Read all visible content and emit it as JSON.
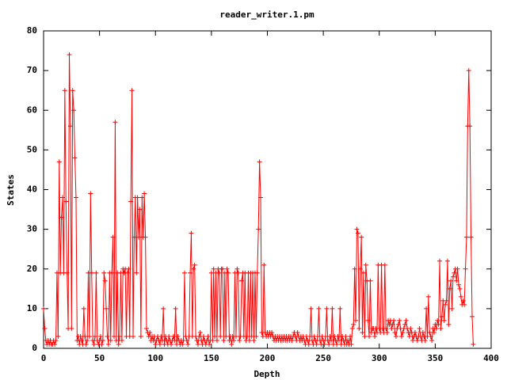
{
  "chart_data": {
    "type": "line",
    "title": "reader_writer.1.pm",
    "xlabel": "Depth",
    "ylabel": "States",
    "xlim": [
      0,
      400
    ],
    "xticks": [
      0,
      50,
      100,
      150,
      200,
      250,
      300,
      350,
      400
    ],
    "ylim": [
      0,
      80
    ],
    "yticks": [
      0,
      10,
      20,
      30,
      40,
      50,
      60,
      70,
      80
    ],
    "series": [
      {
        "name": "reader_writer.1.pm",
        "color": "#ff0000",
        "x": [
          0,
          1,
          2,
          3,
          4,
          5,
          6,
          7,
          8,
          9,
          10,
          11,
          12,
          13,
          14,
          15,
          16,
          17,
          18,
          19,
          20,
          21,
          22,
          23,
          24,
          25,
          26,
          27,
          28,
          29,
          30,
          31,
          32,
          33,
          34,
          35,
          36,
          37,
          38,
          39,
          40,
          41,
          42,
          43,
          44,
          45,
          46,
          47,
          48,
          49,
          50,
          51,
          52,
          53,
          54,
          55,
          56,
          57,
          58,
          59,
          60,
          61,
          62,
          63,
          64,
          65,
          66,
          67,
          68,
          69,
          70,
          71,
          72,
          73,
          74,
          75,
          76,
          77,
          78,
          79,
          80,
          81,
          82,
          83,
          84,
          85,
          86,
          87,
          88,
          89,
          90,
          91,
          92,
          93,
          94,
          95,
          96,
          97,
          98,
          99,
          100,
          101,
          102,
          103,
          104,
          105,
          106,
          107,
          108,
          109,
          110,
          111,
          112,
          113,
          114,
          115,
          116,
          117,
          118,
          119,
          120,
          121,
          122,
          123,
          124,
          125,
          126,
          127,
          128,
          129,
          130,
          131,
          132,
          133,
          134,
          135,
          136,
          137,
          138,
          139,
          140,
          141,
          142,
          143,
          144,
          145,
          146,
          147,
          148,
          149,
          150,
          151,
          152,
          153,
          154,
          155,
          156,
          157,
          158,
          159,
          160,
          161,
          162,
          163,
          164,
          165,
          166,
          167,
          168,
          169,
          170,
          171,
          172,
          173,
          174,
          175,
          176,
          177,
          178,
          179,
          180,
          181,
          182,
          183,
          184,
          185,
          186,
          187,
          188,
          189,
          190,
          191,
          192,
          193,
          194,
          195,
          196,
          197,
          198,
          199,
          200,
          201,
          202,
          203,
          204,
          205,
          206,
          207,
          208,
          209,
          210,
          211,
          212,
          213,
          214,
          215,
          216,
          217,
          218,
          219,
          220,
          221,
          222,
          223,
          224,
          225,
          226,
          227,
          228,
          229,
          230,
          231,
          232,
          233,
          234,
          235,
          236,
          237,
          238,
          239,
          240,
          241,
          242,
          243,
          244,
          245,
          246,
          247,
          248,
          249,
          250,
          251,
          252,
          253,
          254,
          255,
          256,
          257,
          258,
          259,
          260,
          261,
          262,
          263,
          264,
          265,
          266,
          267,
          268,
          269,
          270,
          271,
          272,
          273,
          274,
          275,
          276,
          277,
          278,
          279,
          280,
          281,
          282,
          283,
          284,
          285,
          286,
          287,
          288,
          289,
          290,
          291,
          292,
          293,
          294,
          295,
          296,
          297,
          298,
          299,
          300,
          301,
          302,
          303,
          304,
          305,
          306,
          307,
          308,
          309,
          310,
          311,
          312,
          313,
          314,
          315,
          316,
          317,
          318,
          319,
          320,
          321,
          322,
          323,
          324,
          325,
          326,
          327,
          328,
          329,
          330,
          331,
          332,
          333,
          334,
          335,
          336,
          337,
          338,
          339,
          340,
          341,
          342,
          343,
          344,
          345,
          346,
          347,
          348,
          349,
          350,
          351,
          352,
          353,
          354,
          355,
          356,
          357,
          358,
          359,
          360,
          361,
          362,
          363,
          364,
          365,
          366,
          367,
          368,
          369,
          370,
          371,
          372,
          373,
          374,
          375,
          376,
          377,
          378,
          379,
          380,
          381,
          382,
          383,
          384
        ],
        "values": [
          10,
          5,
          2,
          1,
          2,
          1,
          2,
          1,
          1,
          2,
          1,
          2,
          19,
          3,
          47,
          19,
          33,
          38,
          19,
          65,
          37,
          19,
          5,
          74,
          56,
          5,
          65,
          60,
          48,
          38,
          2,
          3,
          1,
          3,
          2,
          1,
          10,
          3,
          1,
          2,
          19,
          3,
          39,
          19,
          2,
          1,
          3,
          19,
          2,
          1,
          2,
          3,
          1,
          2,
          19,
          17,
          10,
          3,
          1,
          19,
          2,
          19,
          28,
          3,
          57,
          2,
          19,
          1,
          3,
          19,
          2,
          20,
          19,
          20,
          3,
          19,
          20,
          3,
          37,
          65,
          3,
          28,
          38,
          19,
          38,
          28,
          35,
          3,
          38,
          28,
          39,
          28,
          5,
          4,
          3,
          4,
          2,
          3,
          2,
          3,
          1,
          2,
          3,
          2,
          1,
          3,
          2,
          10,
          1,
          3,
          2,
          1,
          3,
          2,
          1,
          2,
          3,
          2,
          10,
          1,
          3,
          2,
          1,
          2,
          1,
          2,
          19,
          3,
          2,
          1,
          3,
          19,
          29,
          3,
          20,
          21,
          3,
          2,
          1,
          3,
          4,
          2,
          1,
          3,
          2,
          1,
          2,
          3,
          1,
          2,
          19,
          2,
          20,
          3,
          19,
          2,
          20,
          19,
          3,
          20,
          20,
          2,
          19,
          3,
          20,
          19,
          2,
          3,
          1,
          3,
          2,
          19,
          3,
          20,
          19,
          2,
          3,
          17,
          19,
          3,
          19,
          2,
          3,
          19,
          2,
          19,
          3,
          19,
          2,
          19,
          3,
          19,
          30,
          47,
          38,
          4,
          3,
          21,
          4,
          3,
          4,
          3,
          4,
          3,
          4,
          3,
          2,
          3,
          2,
          3,
          2,
          3,
          2,
          3,
          2,
          3,
          2,
          3,
          2,
          3,
          2,
          3,
          2,
          3,
          4,
          3,
          2,
          4,
          3,
          2,
          3,
          2,
          3,
          2,
          1,
          3,
          2,
          1,
          3,
          10,
          2,
          1,
          3,
          2,
          1,
          3,
          10,
          2,
          1,
          3,
          2,
          1,
          3,
          10,
          2,
          1,
          3,
          2,
          10,
          1,
          3,
          2,
          1,
          3,
          2,
          10,
          1,
          3,
          2,
          1,
          3,
          1,
          2,
          1,
          3,
          1,
          5,
          6,
          20,
          7,
          30,
          29,
          5,
          20,
          28,
          4,
          19,
          3,
          21,
          17,
          7,
          3,
          17,
          4,
          5,
          5,
          3,
          5,
          4,
          21,
          5,
          4,
          21,
          5,
          4,
          21,
          5,
          4,
          7,
          6,
          7,
          5,
          6,
          7,
          4,
          3,
          5,
          6,
          7,
          5,
          3,
          4,
          5,
          6,
          7,
          5,
          4,
          3,
          5,
          4,
          2,
          3,
          4,
          3,
          2,
          3,
          5,
          3,
          2,
          4,
          3,
          2,
          10,
          3,
          13,
          4,
          3,
          2,
          5,
          4,
          6,
          5,
          7,
          6,
          22,
          5,
          8,
          12,
          7,
          11,
          12,
          22,
          6,
          15,
          17,
          10,
          18,
          19,
          20,
          17,
          20,
          16,
          15,
          13,
          11,
          12,
          11,
          20,
          28,
          56,
          70,
          56,
          28,
          8,
          1
        ]
      }
    ]
  }
}
